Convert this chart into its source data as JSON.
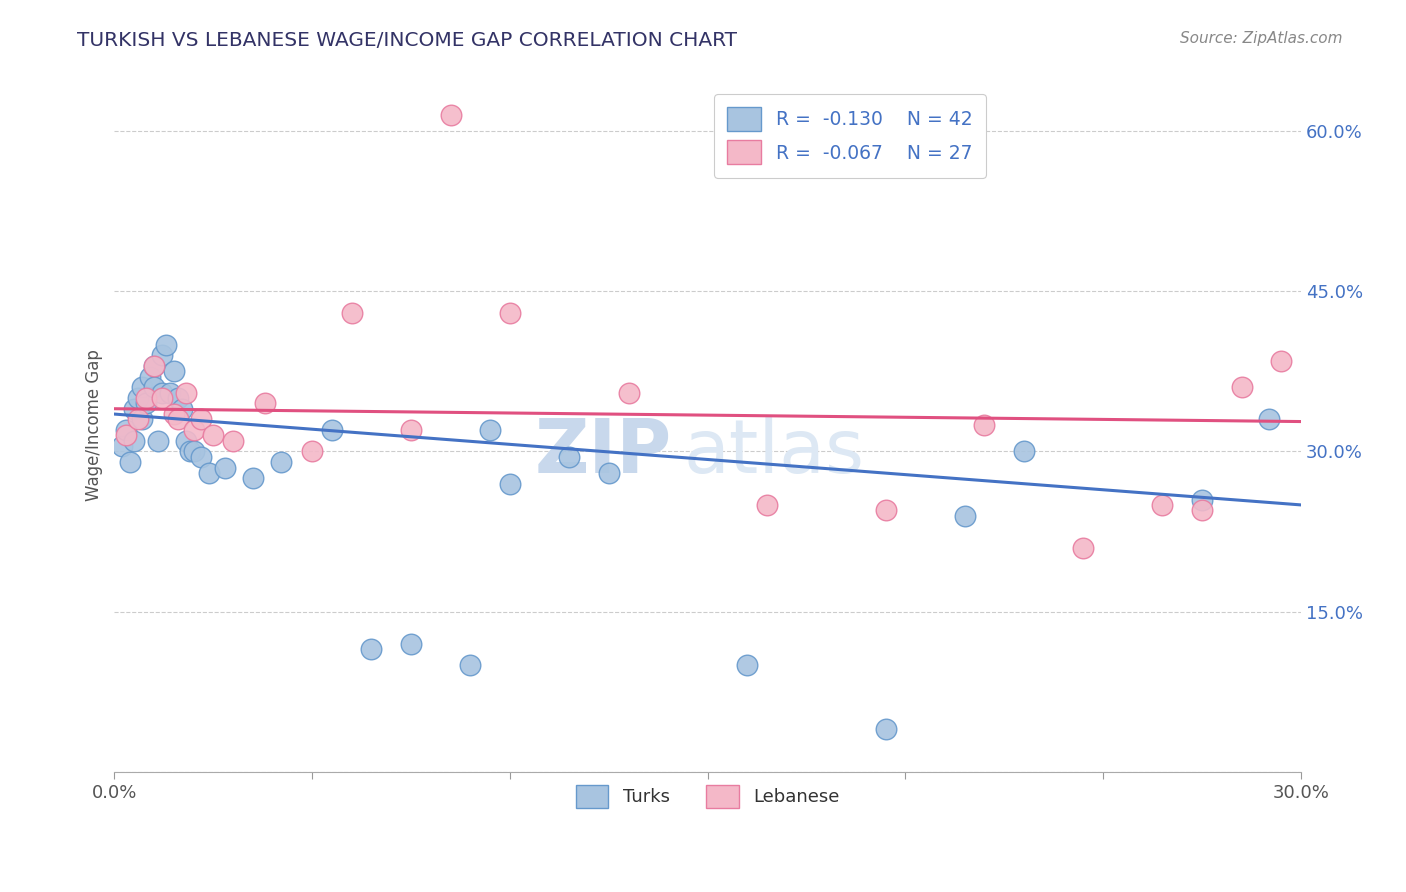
{
  "title": "TURKISH VS LEBANESE WAGE/INCOME GAP CORRELATION CHART",
  "source_text": "Source: ZipAtlas.com",
  "ylabel": "Wage/Income Gap",
  "xmin": 0.0,
  "xmax": 0.3,
  "ymin": 0.0,
  "ymax": 0.65,
  "x_ticks": [
    0.0,
    0.05,
    0.1,
    0.15,
    0.2,
    0.25,
    0.3
  ],
  "x_tick_labels": [
    "0.0%",
    "",
    "",
    "",
    "",
    "",
    "30.0%"
  ],
  "y_ticks": [
    0.0,
    0.15,
    0.3,
    0.45,
    0.6
  ],
  "y_tick_labels": [
    "",
    "15.0%",
    "30.0%",
    "45.0%",
    "60.0%"
  ],
  "turks_color": "#a8c4e0",
  "lebanese_color": "#f4b8c8",
  "turks_edge_color": "#6699cc",
  "lebanese_edge_color": "#e87ca0",
  "trend_turks_color": "#4472c4",
  "trend_lebanese_color": "#e05080",
  "legend_r_turks": "R =  -0.130",
  "legend_n_turks": "N = 42",
  "legend_r_lebanese": "R =  -0.067",
  "legend_n_lebanese": "N = 27",
  "watermark_zip": "ZIP",
  "watermark_atlas": "atlas",
  "turks_x": [
    0.002,
    0.003,
    0.004,
    0.005,
    0.005,
    0.006,
    0.007,
    0.007,
    0.008,
    0.009,
    0.01,
    0.01,
    0.011,
    0.012,
    0.012,
    0.013,
    0.014,
    0.015,
    0.016,
    0.017,
    0.018,
    0.019,
    0.02,
    0.022,
    0.024,
    0.028,
    0.035,
    0.042,
    0.055,
    0.065,
    0.075,
    0.09,
    0.095,
    0.1,
    0.115,
    0.125,
    0.16,
    0.195,
    0.215,
    0.23,
    0.275,
    0.292
  ],
  "turks_y": [
    0.305,
    0.32,
    0.29,
    0.31,
    0.34,
    0.35,
    0.33,
    0.36,
    0.345,
    0.37,
    0.36,
    0.38,
    0.31,
    0.39,
    0.355,
    0.4,
    0.355,
    0.375,
    0.35,
    0.34,
    0.31,
    0.3,
    0.3,
    0.295,
    0.28,
    0.285,
    0.275,
    0.29,
    0.32,
    0.115,
    0.12,
    0.1,
    0.32,
    0.27,
    0.295,
    0.28,
    0.1,
    0.04,
    0.24,
    0.3,
    0.255,
    0.33
  ],
  "lebanese_x": [
    0.003,
    0.006,
    0.008,
    0.01,
    0.012,
    0.015,
    0.016,
    0.018,
    0.02,
    0.022,
    0.025,
    0.03,
    0.038,
    0.05,
    0.06,
    0.075,
    0.085,
    0.1,
    0.13,
    0.165,
    0.195,
    0.22,
    0.245,
    0.265,
    0.275,
    0.285,
    0.295
  ],
  "lebanese_y": [
    0.315,
    0.33,
    0.35,
    0.38,
    0.35,
    0.335,
    0.33,
    0.355,
    0.32,
    0.33,
    0.315,
    0.31,
    0.345,
    0.3,
    0.43,
    0.32,
    0.615,
    0.43,
    0.355,
    0.25,
    0.245,
    0.325,
    0.21,
    0.25,
    0.245,
    0.36,
    0.385
  ]
}
